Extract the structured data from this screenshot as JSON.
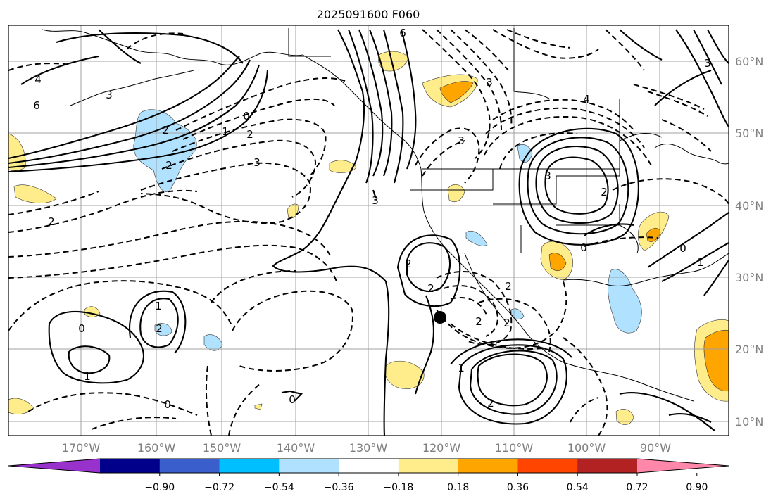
{
  "title": "2025091600 F060",
  "lat_labels": [
    "60°N",
    "50°N",
    "40°N",
    "30°N",
    "20°N",
    "10°N"
  ],
  "lon_labels": [
    "170°W",
    "160°W",
    "150°W",
    "140°W",
    "130°W",
    "120°W",
    "110°W",
    "100°W",
    "90°W"
  ],
  "contour_labels": [
    "6",
    "4",
    "2",
    "3",
    "3",
    "2",
    "0",
    "1",
    "2",
    "3",
    "4",
    "6",
    "2",
    "3",
    "3",
    "2",
    "0",
    "2",
    "2",
    "2",
    "1",
    "0",
    "1",
    "0",
    "2",
    "1",
    "2",
    "2",
    "2",
    "3",
    "3",
    "0",
    "1",
    "0"
  ],
  "colorbar": {
    "colors": [
      "#9932cc",
      "#00008b",
      "#3a5fcd",
      "#00bfff",
      "#b0e2ff",
      "#ffffff",
      "#ffec8b",
      "#ffa500",
      "#ff4500",
      "#b22222",
      "#ff88aa"
    ],
    "tick_labels": [
      "−0.90",
      "−0.72",
      "−0.54",
      "−0.36",
      "−0.18",
      "0.18",
      "0.36",
      "0.54",
      "0.72",
      "0.90"
    ]
  },
  "marker": "black-dot"
}
